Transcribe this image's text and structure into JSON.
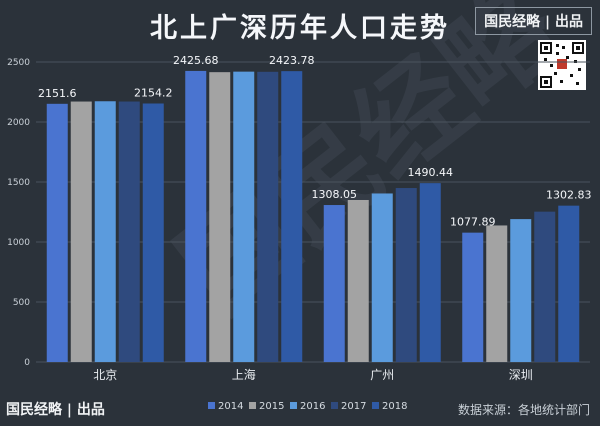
{
  "header": {
    "title": "北上广深历年人口走势",
    "brand": "国民经略 | 出品"
  },
  "footer": {
    "brand": "国民经略 | 出品",
    "source": "数据来源：各地统计部门"
  },
  "watermark": "国民经略",
  "colors": {
    "background": "#2b323a",
    "series": [
      "#4a74d0",
      "#a3a3a3",
      "#5b9bdd",
      "#2f4a7e",
      "#2f5aa6"
    ]
  },
  "chart_data": {
    "type": "bar",
    "title": "北上广深历年人口走势",
    "categories": [
      "北京",
      "上海",
      "广州",
      "深圳"
    ],
    "series": [
      {
        "name": "2014",
        "values": [
          2151.6,
          2425.68,
          1308.05,
          1077.89
        ]
      },
      {
        "name": "2015",
        "values": [
          2170.5,
          2415.3,
          1350.1,
          1137.9
        ]
      },
      {
        "name": "2016",
        "values": [
          2172.9,
          2419.7,
          1404.4,
          1190.8
        ]
      },
      {
        "name": "2017",
        "values": [
          2170.7,
          2418.3,
          1449.8,
          1252.8
        ]
      },
      {
        "name": "2018",
        "values": [
          2154.2,
          2423.78,
          1490.44,
          1302.83
        ]
      }
    ],
    "data_labels": [
      {
        "category": 0,
        "series": 0,
        "text": "2151.6"
      },
      {
        "category": 0,
        "series": 4,
        "text": "2154.2"
      },
      {
        "category": 1,
        "series": 0,
        "text": "2425.68"
      },
      {
        "category": 1,
        "series": 4,
        "text": "2423.78"
      },
      {
        "category": 2,
        "series": 0,
        "text": "1308.05"
      },
      {
        "category": 2,
        "series": 4,
        "text": "1490.44"
      },
      {
        "category": 3,
        "series": 0,
        "text": "1077.89"
      },
      {
        "category": 3,
        "series": 4,
        "text": "1302.83"
      }
    ],
    "yticks": [
      "0",
      "500",
      "1000",
      "1500",
      "2000",
      "2500"
    ],
    "ylim": [
      0,
      2500
    ],
    "grid": true,
    "legend_position": "bottom"
  }
}
